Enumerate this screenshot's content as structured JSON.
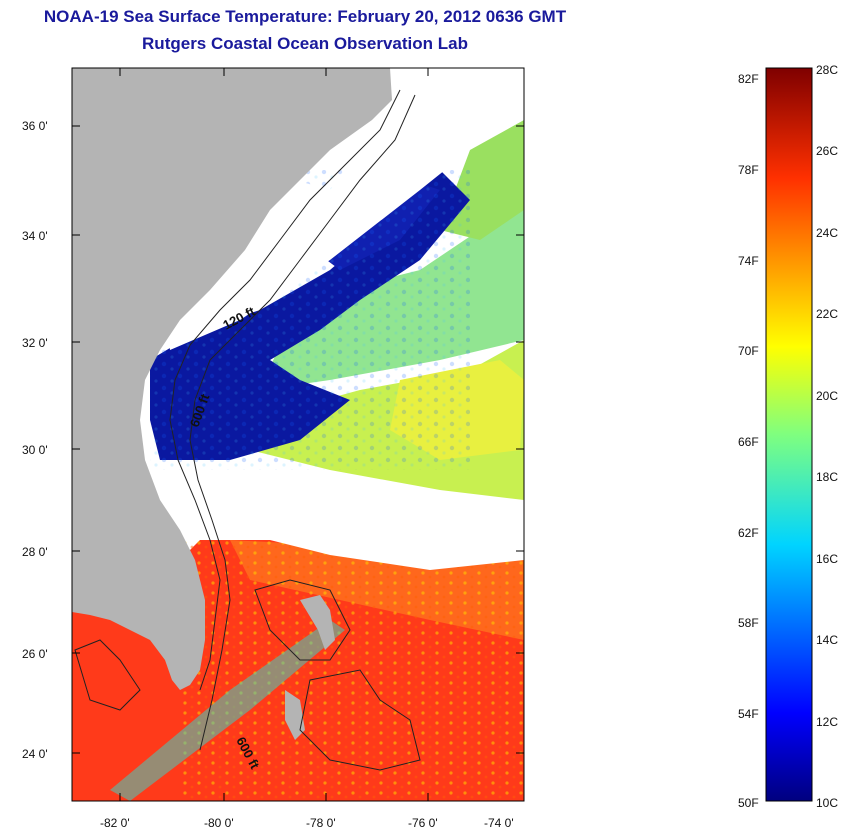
{
  "title": "NOAA-19 Sea Surface Temperature:  February 20, 2012 0636 GMT",
  "subtitle": "Rutgers Coastal Ocean Observation Lab",
  "map": {
    "lat_ticks": [
      "36 0'",
      "34 0'",
      "32 0'",
      "30 0'",
      "28 0'",
      "26 0'",
      "24 0'"
    ],
    "lon_ticks": [
      "-82 0'",
      "-80 0'",
      "-78 0'",
      "-76 0'",
      "-74 0'"
    ],
    "contour_labels": [
      "120 ft",
      "600 ft",
      "600 ft"
    ]
  },
  "colorbar": {
    "fahrenheit_labels": [
      "82F",
      "78F",
      "74F",
      "70F",
      "66F",
      "62F",
      "58F",
      "54F",
      "50F"
    ],
    "celsius_labels": [
      "28C",
      "26C",
      "24C",
      "22C",
      "20C",
      "18C",
      "16C",
      "14C",
      "12C",
      "10C"
    ]
  },
  "colors": {
    "land": "#b4b4b4",
    "cloud": "#ffffff",
    "title": "#1a1a9c"
  }
}
